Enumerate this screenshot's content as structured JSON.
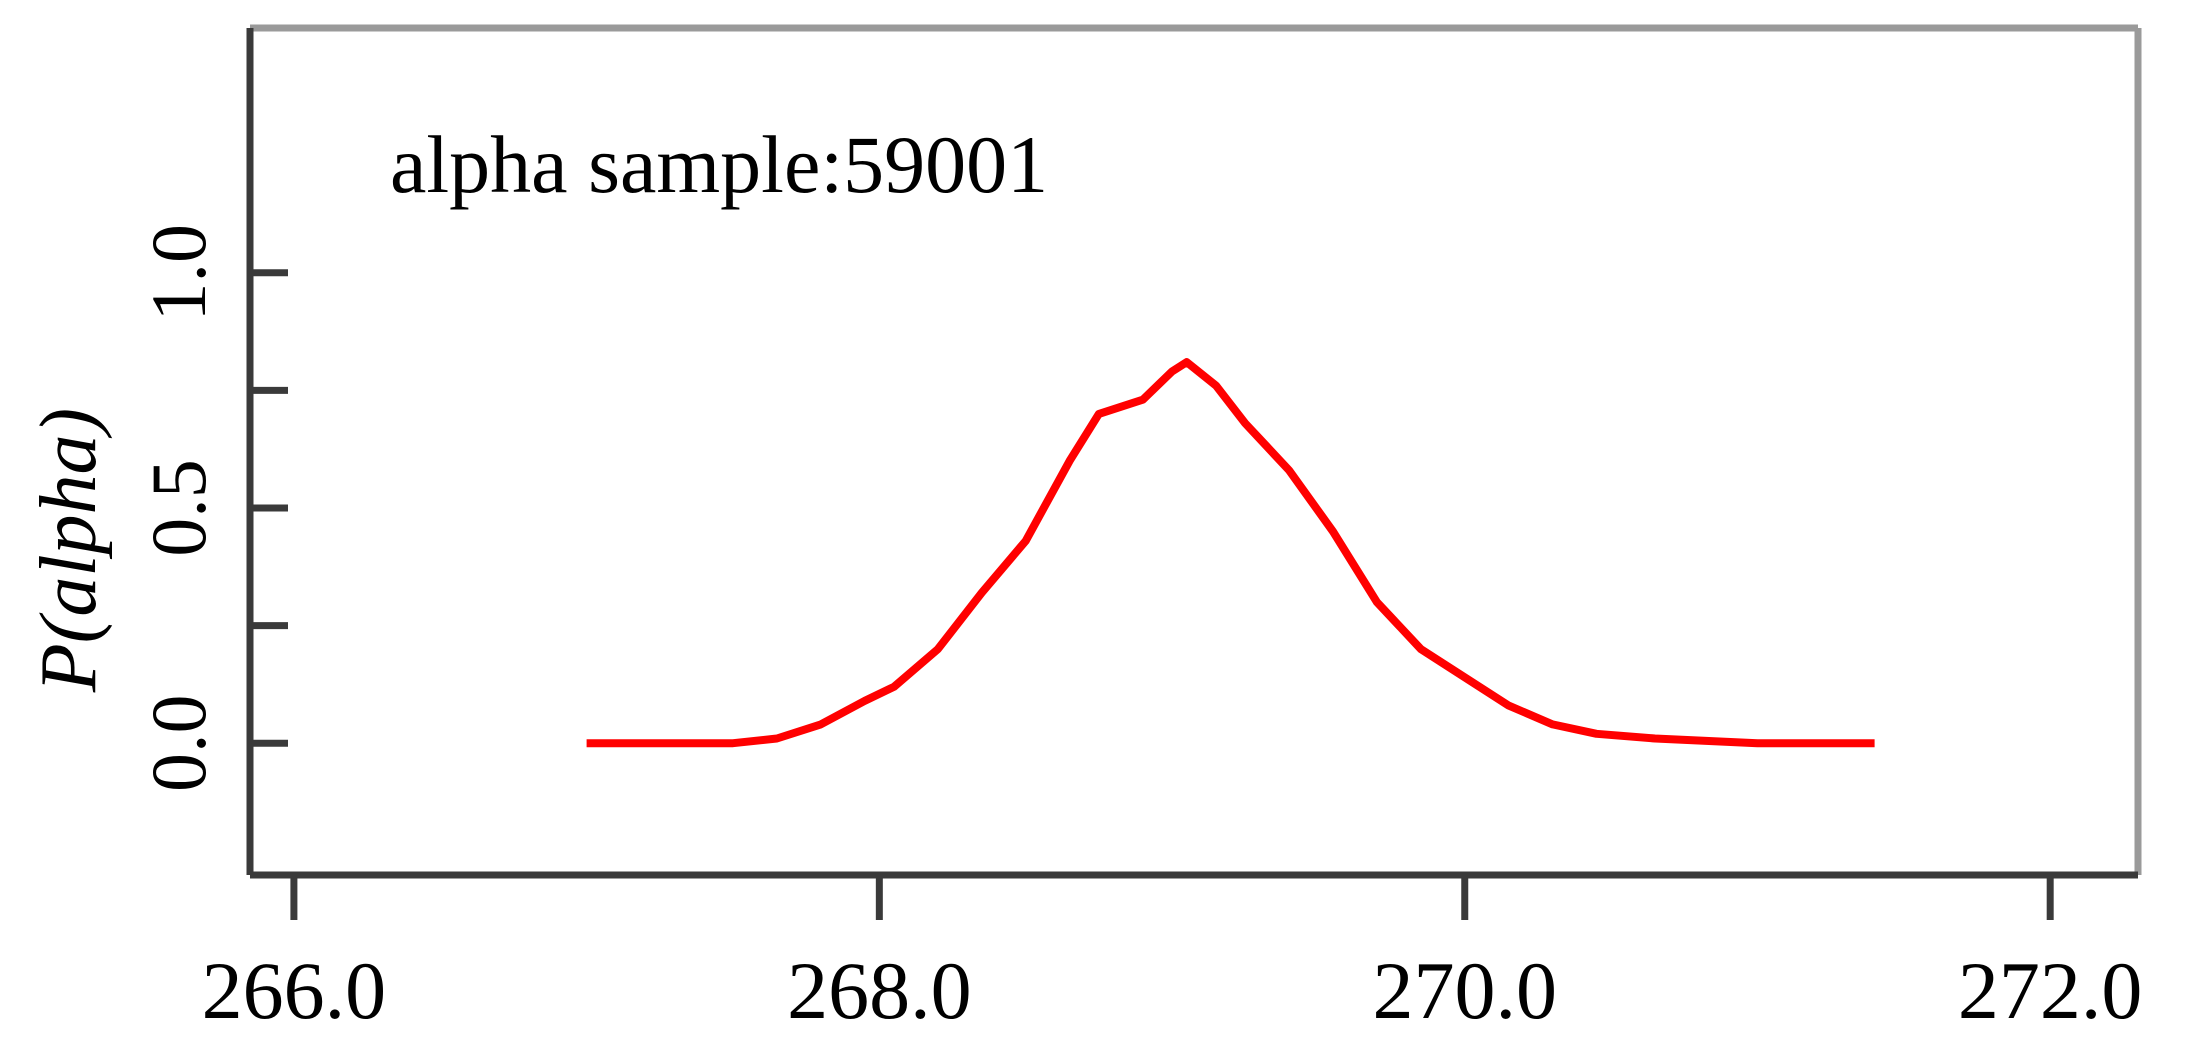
{
  "chart_data": {
    "type": "line",
    "annotation": "alpha sample:59001",
    "ylabel": "P(alpha)",
    "xlabel": "",
    "xlim": [
      265.85,
      272.3
    ],
    "ylim": [
      -0.28,
      1.52
    ],
    "xticks": [
      266.0,
      268.0,
      270.0,
      272.0
    ],
    "xtick_labels": [
      "266.0",
      "268.0",
      "270.0",
      "272.0"
    ],
    "yticks": [
      0.0,
      0.25,
      0.5,
      0.75,
      1.0
    ],
    "ytick_labels": [
      "0.0",
      "0.5",
      "1.0"
    ],
    "ytick_label_values": [
      0.0,
      0.5,
      1.0
    ],
    "grid": false,
    "series": [
      {
        "color": "#ff0000",
        "x": [
          267.0,
          267.5,
          267.65,
          267.8,
          267.95,
          268.05,
          268.2,
          268.35,
          268.5,
          268.65,
          268.75,
          268.9,
          269.0,
          269.05,
          269.15,
          269.25,
          269.4,
          269.55,
          269.7,
          269.85,
          270.0,
          270.15,
          270.3,
          270.45,
          270.65,
          271.0,
          271.4
        ],
        "y": [
          0.0,
          0.0,
          0.01,
          0.04,
          0.09,
          0.12,
          0.2,
          0.32,
          0.43,
          0.6,
          0.7,
          0.73,
          0.79,
          0.81,
          0.76,
          0.68,
          0.58,
          0.45,
          0.3,
          0.2,
          0.14,
          0.08,
          0.04,
          0.02,
          0.01,
          0.0,
          0.0
        ]
      }
    ]
  }
}
